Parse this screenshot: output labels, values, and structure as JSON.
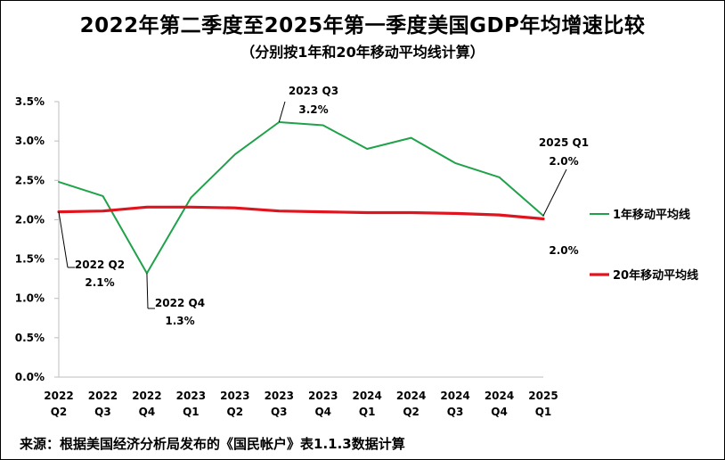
{
  "title": "2022年第二季度至2025年第一季度美国GDP年均增速比较",
  "subtitle": "（分别按1年和20年移动平均线计算）",
  "source": "来源：根据美国经济分析局发布的《国民帐户》表1.1.3数据计算",
  "chart_data": {
    "type": "line",
    "categories": [
      [
        "2022",
        "Q2"
      ],
      [
        "2022",
        "Q3"
      ],
      [
        "2022",
        "Q4"
      ],
      [
        "2023",
        "Q1"
      ],
      [
        "2023",
        "Q2"
      ],
      [
        "2023",
        "Q3"
      ],
      [
        "2023",
        "Q4"
      ],
      [
        "2024",
        "Q1"
      ],
      [
        "2024",
        "Q2"
      ],
      [
        "2024",
        "Q3"
      ],
      [
        "2024",
        "Q4"
      ],
      [
        "2025",
        "Q1"
      ]
    ],
    "y_ticks": [
      "0.0%",
      "0.5%",
      "1.0%",
      "1.5%",
      "2.0%",
      "2.5%",
      "3.0%",
      "3.5%"
    ],
    "ylim": [
      0,
      3.5
    ],
    "series": [
      {
        "name": "1年移动平均线",
        "color": "#1fa24a",
        "values": [
          2.48,
          2.3,
          1.32,
          2.28,
          2.83,
          3.24,
          3.2,
          2.9,
          3.04,
          2.72,
          2.54,
          2.05
        ]
      },
      {
        "name": "20年移动平均线",
        "color": "#e0141e",
        "values": [
          2.1,
          2.11,
          2.16,
          2.16,
          2.15,
          2.11,
          2.1,
          2.09,
          2.09,
          2.08,
          2.06,
          2.01
        ]
      }
    ],
    "annotations": [
      {
        "period": "2022 Q2",
        "value": "2.1%"
      },
      {
        "period": "2022 Q4",
        "value": "1.3%"
      },
      {
        "period": "2023 Q3",
        "value": "3.2%"
      },
      {
        "period": "2025 Q1",
        "value": "2.0%"
      },
      {
        "period": "",
        "value": "2.0%"
      }
    ],
    "grid": true,
    "legend": "right"
  }
}
